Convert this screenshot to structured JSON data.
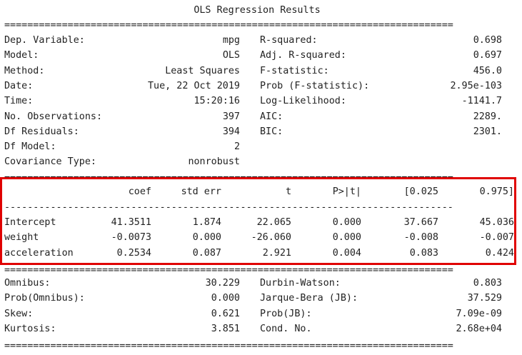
{
  "title": "OLS Regression Results",
  "separators": {
    "double": "==============================================================================",
    "single": "------------------------------------------------------------------------------"
  },
  "summary_left": [
    {
      "label": "Dep. Variable:",
      "value": "mpg"
    },
    {
      "label": "Model:",
      "value": "OLS"
    },
    {
      "label": "Method:",
      "value": "Least Squares"
    },
    {
      "label": "Date:",
      "value": "Tue, 22 Oct 2019"
    },
    {
      "label": "Time:",
      "value": "15:20:16"
    },
    {
      "label": "No. Observations:",
      "value": "397"
    },
    {
      "label": "Df Residuals:",
      "value": "394"
    },
    {
      "label": "Df Model:",
      "value": "2"
    },
    {
      "label": "Covariance Type:",
      "value": "nonrobust"
    }
  ],
  "summary_right": [
    {
      "label": "R-squared:",
      "value": "0.698"
    },
    {
      "label": "Adj. R-squared:",
      "value": "0.697"
    },
    {
      "label": "F-statistic:",
      "value": "456.0"
    },
    {
      "label": "Prob (F-statistic):",
      "value": "2.95e-103"
    },
    {
      "label": "Log-Likelihood:",
      "value": "-1141.7"
    },
    {
      "label": "AIC:",
      "value": "2289."
    },
    {
      "label": "BIC:",
      "value": "2301."
    }
  ],
  "coef_table": {
    "headers": [
      "coef",
      "std err",
      "t",
      "P>|t|",
      "[0.025",
      "0.975]"
    ],
    "rows": [
      {
        "name": "Intercept",
        "values": [
          "41.3511",
          "1.874",
          "22.065",
          "0.000",
          "37.667",
          "45.036"
        ]
      },
      {
        "name": "weight",
        "values": [
          "-0.0073",
          "0.000",
          "-26.060",
          "0.000",
          "-0.008",
          "-0.007"
        ]
      },
      {
        "name": "acceleration",
        "values": [
          "0.2534",
          "0.087",
          "2.921",
          "0.004",
          "0.083",
          "0.424"
        ]
      }
    ]
  },
  "diagnostics_left": [
    {
      "label": "Omnibus:",
      "value": "30.229"
    },
    {
      "label": "Prob(Omnibus):",
      "value": "0.000"
    },
    {
      "label": "Skew:",
      "value": "0.621"
    },
    {
      "label": "Kurtosis:",
      "value": "3.851"
    }
  ],
  "diagnostics_right": [
    {
      "label": "Durbin-Watson:",
      "value": "0.803"
    },
    {
      "label": "Jarque-Bera (JB):",
      "value": "37.529"
    },
    {
      "label": "Prob(JB):",
      "value": "7.09e-09"
    },
    {
      "label": "Cond. No.",
      "value": "2.68e+04"
    }
  ],
  "highlight_color": "#e00000"
}
